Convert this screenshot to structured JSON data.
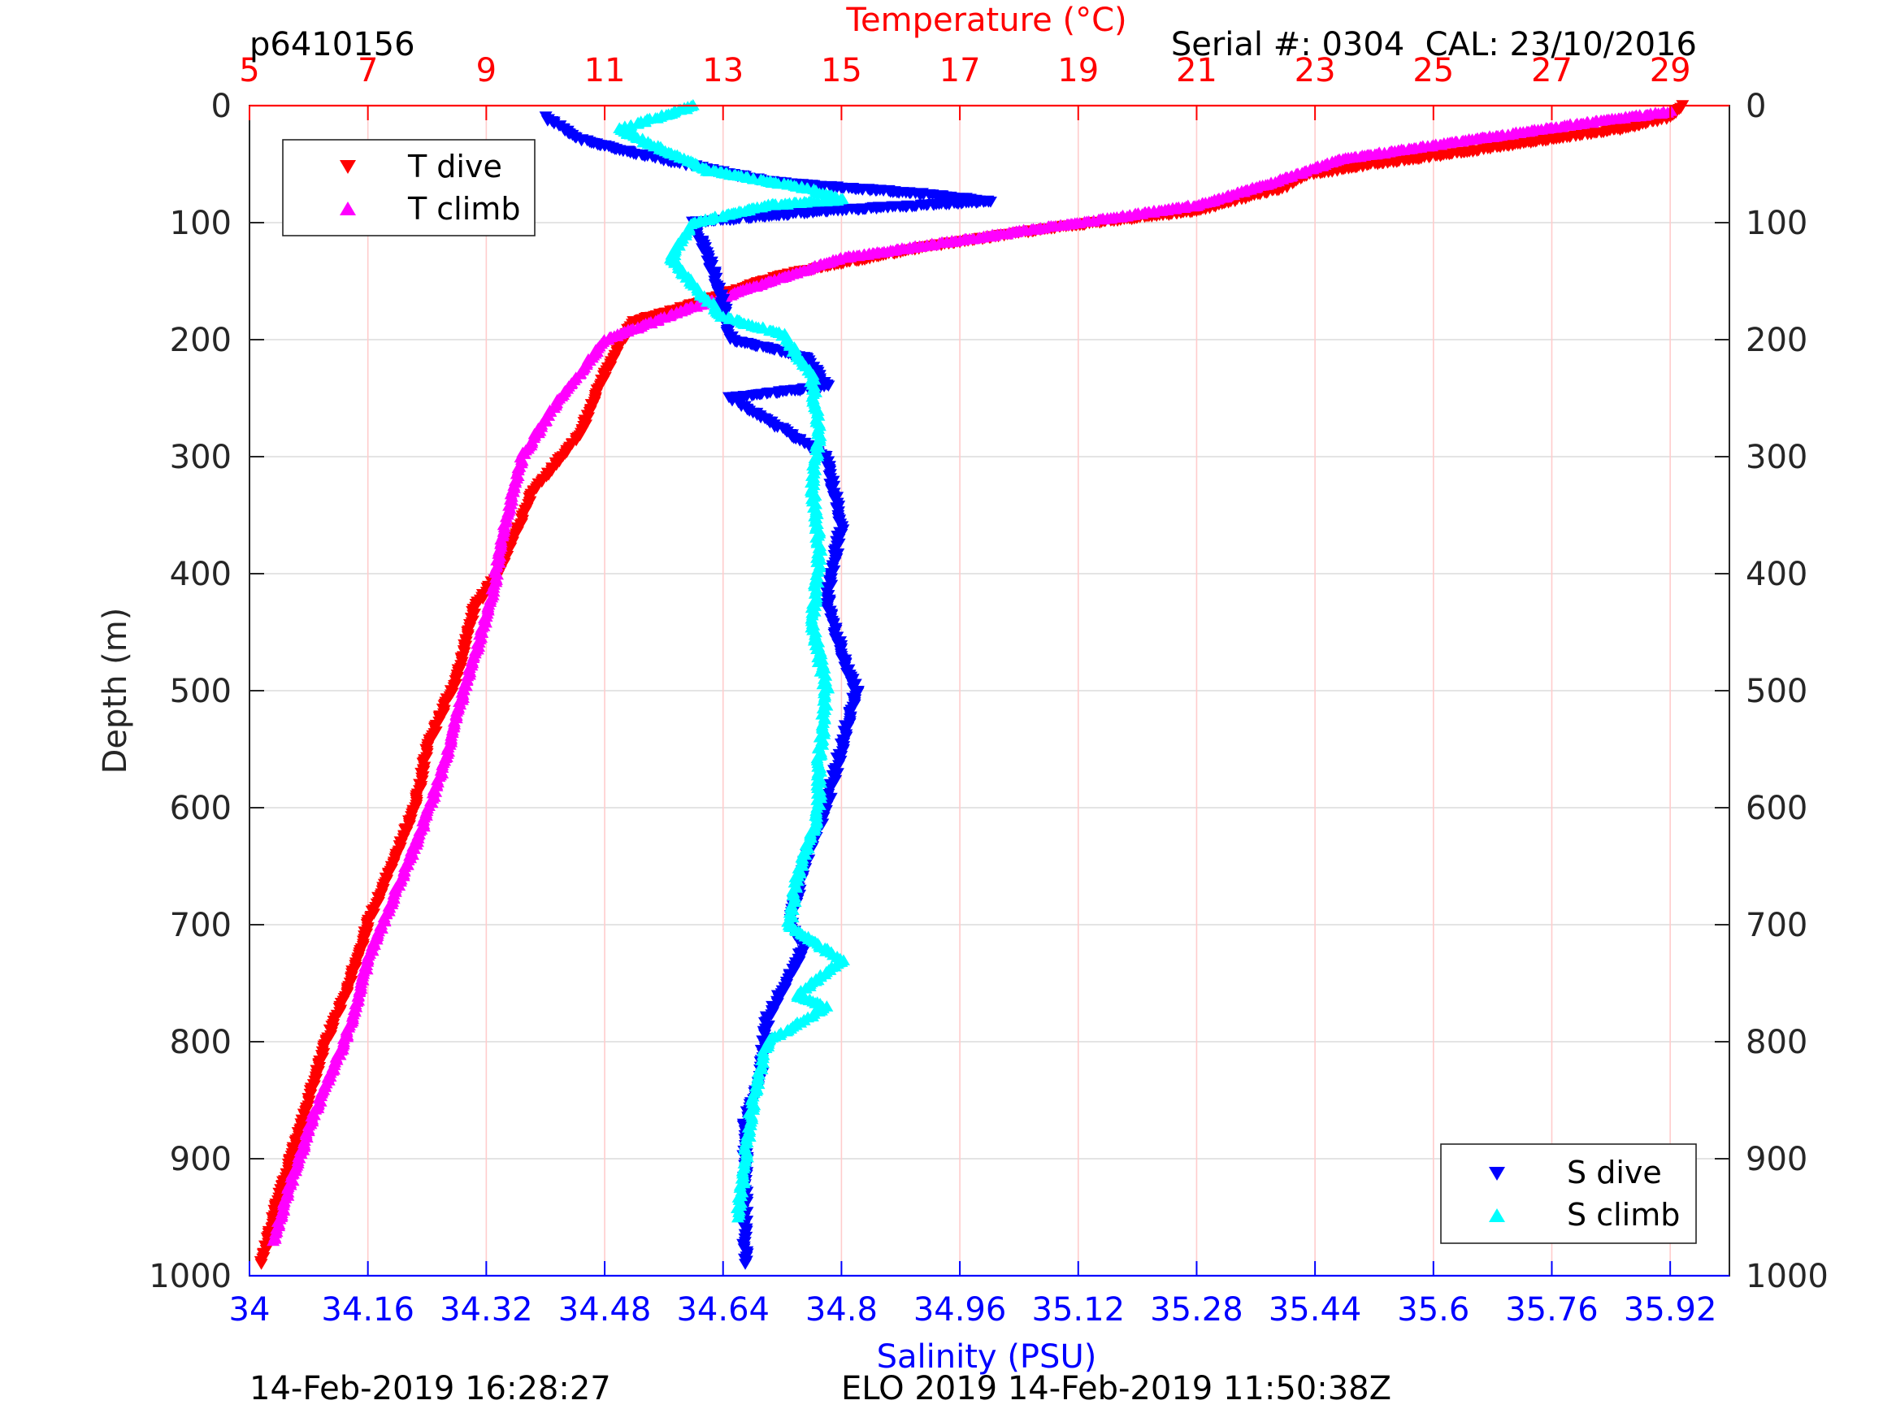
{
  "figure": {
    "id_label": "p6410156",
    "serial_label": "Serial #: 0304  CAL: 23/10/2016",
    "footer_left": "14-Feb-2019 16:28:27",
    "footer_right": "ELO 2019 14-Feb-2019 11:50:38Z"
  },
  "colors": {
    "t_dive": "#ff0000",
    "t_climb": "#ff00ff",
    "s_dive": "#0000ff",
    "s_climb": "#00ffff",
    "temperature_axis": "#ff0000",
    "salinity_axis": "#0000ff",
    "temperature_grid": "#ffcccc",
    "depth_grid": "#dcdcdc"
  },
  "chart_data": {
    "type": "scatter",
    "title": "",
    "ylabel": "Depth (m)",
    "ylim": [
      0,
      1000
    ],
    "y_reversed": true,
    "y_ticks": [
      "0",
      "100",
      "200",
      "300",
      "400",
      "500",
      "600",
      "700",
      "800",
      "900",
      "1000"
    ],
    "x_top": {
      "label": "Temperature (°C)",
      "lim": [
        5,
        30
      ],
      "ticks": [
        "5",
        "7",
        "9",
        "11",
        "13",
        "15",
        "17",
        "19",
        "21",
        "23",
        "25",
        "27",
        "29"
      ]
    },
    "x_bottom": {
      "label": "Salinity (PSU)",
      "lim": [
        34,
        36
      ],
      "ticks": [
        "34",
        "34.16",
        "34.32",
        "34.48",
        "34.64",
        "34.8",
        "34.96",
        "35.12",
        "35.28",
        "35.44",
        "35.6",
        "35.76",
        "35.92"
      ]
    },
    "grid": true,
    "legends": [
      {
        "placement": "top-left",
        "entries": [
          {
            "name": "T dive",
            "marker": "down-triangle"
          },
          {
            "name": "T climb",
            "marker": "up-triangle"
          }
        ]
      },
      {
        "placement": "bottom-right",
        "entries": [
          {
            "name": "S dive",
            "marker": "down-triangle"
          },
          {
            "name": "S climb",
            "marker": "up-triangle"
          }
        ]
      }
    ],
    "series": [
      {
        "name": "T dive",
        "axis": "temperature",
        "marker": "down-triangle",
        "points": [
          [
            29.2,
            0
          ],
          [
            29.0,
            10
          ],
          [
            28.2,
            20
          ],
          [
            26.8,
            30
          ],
          [
            25.5,
            40
          ],
          [
            24.0,
            50
          ],
          [
            22.8,
            60
          ],
          [
            22.5,
            70
          ],
          [
            21.0,
            90
          ],
          [
            18.5,
            105
          ],
          [
            16.5,
            120
          ],
          [
            14.0,
            145
          ],
          [
            12.5,
            170
          ],
          [
            11.5,
            185
          ],
          [
            11.3,
            200
          ],
          [
            11.0,
            230
          ],
          [
            10.6,
            280
          ],
          [
            9.8,
            330
          ],
          [
            9.2,
            400
          ],
          [
            8.8,
            430
          ],
          [
            8.5,
            490
          ],
          [
            8.0,
            550
          ],
          [
            7.8,
            600
          ],
          [
            7.4,
            650
          ],
          [
            7.0,
            700
          ],
          [
            6.7,
            750
          ],
          [
            6.3,
            800
          ],
          [
            6.0,
            850
          ],
          [
            5.7,
            900
          ],
          [
            5.4,
            950
          ],
          [
            5.2,
            990
          ]
        ]
      },
      {
        "name": "T climb",
        "axis": "temperature",
        "marker": "up-triangle",
        "points": [
          [
            29.0,
            5
          ],
          [
            27.5,
            15
          ],
          [
            25.5,
            30
          ],
          [
            23.5,
            45
          ],
          [
            22.0,
            70
          ],
          [
            21.0,
            85
          ],
          [
            19.0,
            100
          ],
          [
            17.0,
            115
          ],
          [
            15.0,
            130
          ],
          [
            13.5,
            155
          ],
          [
            12.3,
            175
          ],
          [
            11.0,
            200
          ],
          [
            10.1,
            260
          ],
          [
            9.6,
            300
          ],
          [
            9.3,
            360
          ],
          [
            9.1,
            420
          ],
          [
            8.8,
            470
          ],
          [
            8.5,
            520
          ],
          [
            8.3,
            560
          ],
          [
            7.9,
            620
          ],
          [
            7.4,
            680
          ],
          [
            7.0,
            730
          ],
          [
            6.8,
            770
          ],
          [
            6.6,
            800
          ],
          [
            6.1,
            860
          ],
          [
            5.7,
            920
          ],
          [
            5.4,
            970
          ]
        ]
      },
      {
        "name": "S dive",
        "axis": "salinity",
        "marker": "down-triangle",
        "points": [
          [
            34.4,
            10
          ],
          [
            34.45,
            30
          ],
          [
            34.55,
            45
          ],
          [
            34.7,
            65
          ],
          [
            34.9,
            75
          ],
          [
            35.0,
            82
          ],
          [
            34.78,
            90
          ],
          [
            34.6,
            100
          ],
          [
            34.62,
            130
          ],
          [
            34.64,
            170
          ],
          [
            34.65,
            200
          ],
          [
            34.75,
            215
          ],
          [
            34.78,
            240
          ],
          [
            34.65,
            250
          ],
          [
            34.78,
            300
          ],
          [
            34.8,
            360
          ],
          [
            34.78,
            420
          ],
          [
            34.8,
            470
          ],
          [
            34.82,
            500
          ],
          [
            34.8,
            550
          ],
          [
            34.78,
            600
          ],
          [
            34.75,
            650
          ],
          [
            34.73,
            700
          ],
          [
            34.75,
            720
          ],
          [
            34.7,
            780
          ],
          [
            34.69,
            830
          ],
          [
            34.67,
            870
          ],
          [
            34.67,
            920
          ],
          [
            34.67,
            960
          ],
          [
            34.67,
            990
          ]
        ]
      },
      {
        "name": "S climb",
        "axis": "salinity",
        "marker": "up-triangle",
        "points": [
          [
            34.6,
            0
          ],
          [
            34.55,
            10
          ],
          [
            34.5,
            20
          ],
          [
            34.55,
            35
          ],
          [
            34.62,
            55
          ],
          [
            34.75,
            70
          ],
          [
            34.8,
            80
          ],
          [
            34.7,
            85
          ],
          [
            34.6,
            100
          ],
          [
            34.57,
            130
          ],
          [
            34.61,
            160
          ],
          [
            34.64,
            180
          ],
          [
            34.72,
            195
          ],
          [
            34.76,
            230
          ],
          [
            34.77,
            280
          ],
          [
            34.76,
            320
          ],
          [
            34.77,
            380
          ],
          [
            34.76,
            440
          ],
          [
            34.78,
            500
          ],
          [
            34.77,
            560
          ],
          [
            34.77,
            600
          ],
          [
            34.74,
            660
          ],
          [
            34.73,
            700
          ],
          [
            34.8,
            730
          ],
          [
            34.74,
            760
          ],
          [
            34.78,
            770
          ],
          [
            34.7,
            800
          ],
          [
            34.68,
            850
          ],
          [
            34.67,
            900
          ],
          [
            34.66,
            950
          ]
        ]
      }
    ]
  }
}
